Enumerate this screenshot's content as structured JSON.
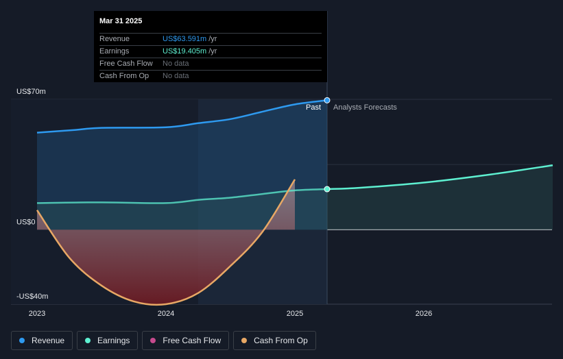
{
  "chart_data": {
    "type": "line",
    "y_labels": [
      "US$70m",
      "US$0",
      "-US$40m"
    ],
    "ylim": [
      -40,
      70
    ],
    "x_ticks": [
      "2023",
      "2024",
      "2025",
      "2026"
    ],
    "past_label": "Past",
    "forecast_label": "Analysts Forecasts",
    "series": [
      {
        "name": "Revenue",
        "color": "#2e9af0",
        "points": [
          [
            2023.0,
            52.1
          ],
          [
            2023.3,
            53.6
          ],
          [
            2023.5,
            54.7
          ],
          [
            2024.0,
            55.0
          ],
          [
            2024.25,
            57.2
          ],
          [
            2024.5,
            59.4
          ],
          [
            2024.75,
            63.4
          ],
          [
            2025.0,
            67.3
          ],
          [
            2025.25,
            69.5
          ]
        ]
      },
      {
        "name": "Earnings",
        "color": "#5ef0d1",
        "points": [
          [
            2023.0,
            14.3
          ],
          [
            2023.5,
            14.7
          ],
          [
            2024.0,
            14.3
          ],
          [
            2024.25,
            16.0
          ],
          [
            2024.5,
            17.2
          ],
          [
            2024.75,
            19.2
          ],
          [
            2025.0,
            21.1
          ],
          [
            2025.25,
            21.8
          ],
          [
            2025.5,
            22.5
          ],
          [
            2026.0,
            25.3
          ],
          [
            2026.5,
            29.5
          ],
          [
            2027.0,
            34.6
          ]
        ]
      },
      {
        "name": "Free Cash Flow",
        "color": "#c64a8e",
        "points": []
      },
      {
        "name": "Cash From Op",
        "color": "#e8a865",
        "points": [
          [
            2023.0,
            10.5
          ],
          [
            2023.25,
            -15.0
          ],
          [
            2023.5,
            -30.0
          ],
          [
            2023.75,
            -38.5
          ],
          [
            2024.0,
            -40.0
          ],
          [
            2024.25,
            -34.0
          ],
          [
            2024.5,
            -19.5
          ],
          [
            2024.75,
            -1.0
          ],
          [
            2025.0,
            27.0
          ]
        ]
      }
    ]
  },
  "tooltip": {
    "date": "Mar 31 2025",
    "rows": [
      {
        "name": "Revenue",
        "value": "US$63.591m",
        "unit": "/yr"
      },
      {
        "name": "Earnings",
        "value": "US$19.405m",
        "unit": "/yr"
      },
      {
        "name": "Free Cash Flow",
        "value": "No data",
        "unit": ""
      },
      {
        "name": "Cash From Op",
        "value": "No data",
        "unit": ""
      }
    ]
  },
  "legend": [
    {
      "label": "Revenue",
      "color": "#2e9af0"
    },
    {
      "label": "Earnings",
      "color": "#5ef0d1"
    },
    {
      "label": "Free Cash Flow",
      "color": "#c64a8e"
    },
    {
      "label": "Cash From Op",
      "color": "#e8a865"
    }
  ]
}
